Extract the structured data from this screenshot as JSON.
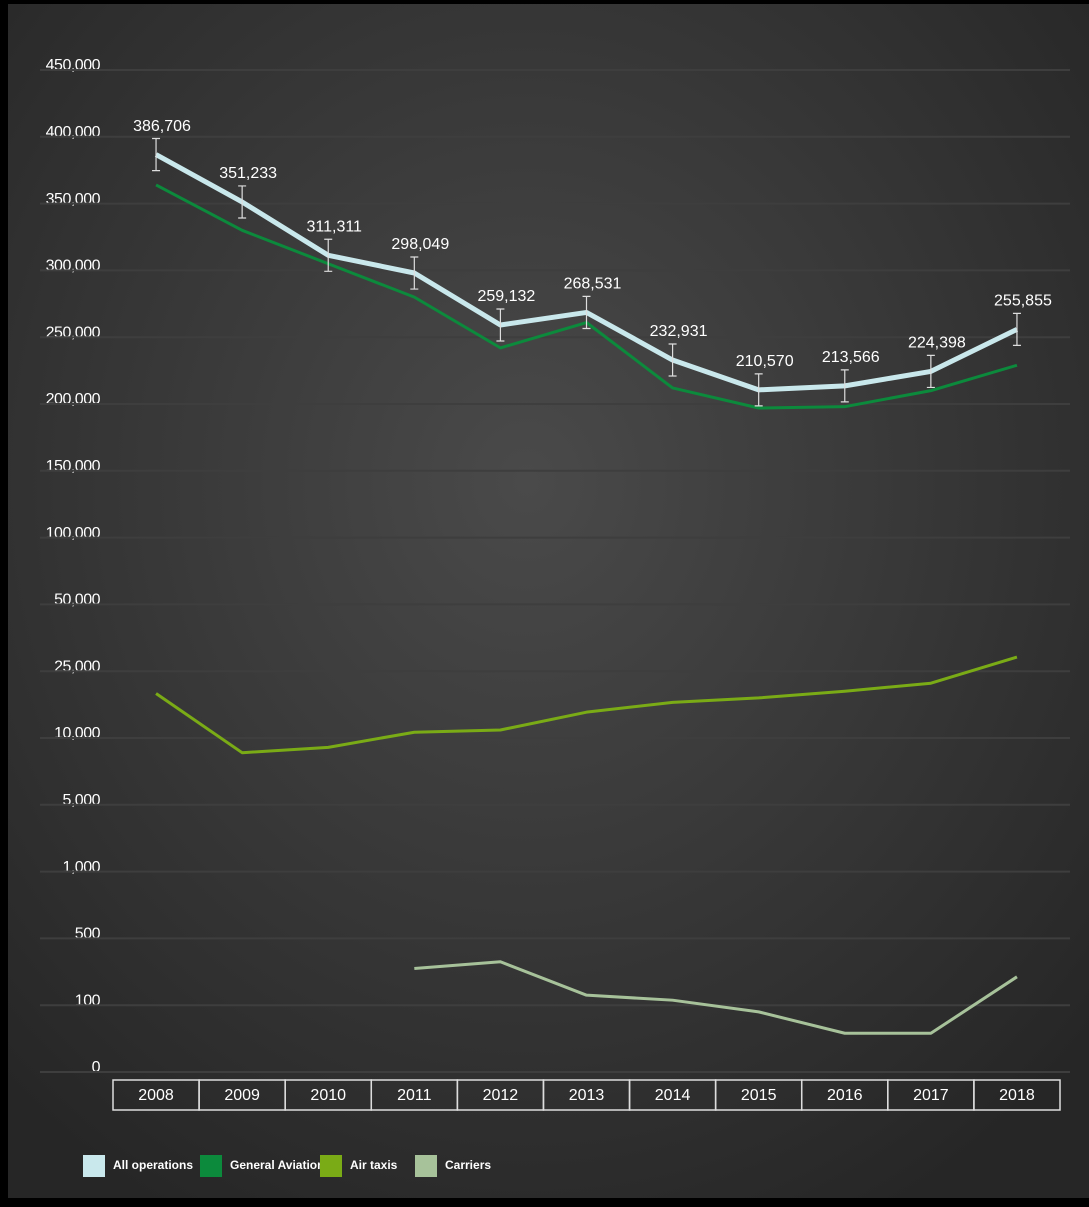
{
  "chart_data": {
    "type": "line",
    "categories": [
      "2008",
      "2009",
      "2010",
      "2011",
      "2012",
      "2013",
      "2014",
      "2015",
      "2016",
      "2017",
      "2018"
    ],
    "series": [
      {
        "name": "All operations",
        "color": "#c9e8ec",
        "width": 5,
        "values": [
          386706,
          351233,
          311311,
          298049,
          259132,
          268531,
          232931,
          210570,
          213566,
          224398,
          255855
        ],
        "value_labels": [
          "386,706",
          "351,233",
          "311,311",
          "298,049",
          "259,132",
          "268,531",
          "232,931",
          "210,570",
          "213,566",
          "224,398",
          "255,855"
        ],
        "errors": [
          12000,
          12000,
          12000,
          12000,
          12000,
          12000,
          12000,
          12000,
          12000,
          12000,
          12000
        ]
      },
      {
        "name": "General Aviation",
        "color": "#0c8a3c",
        "width": 3,
        "values": [
          364000,
          330000,
          305000,
          280000,
          242000,
          261000,
          212000,
          197000,
          198000,
          210000,
          229000
        ]
      },
      {
        "name": "Air taxis",
        "color": "#7aab16",
        "width": 3,
        "values": [
          20000,
          8900,
          9300,
          11300,
          11800,
          15800,
          18000,
          19000,
          20500,
          22300,
          30300
        ]
      },
      {
        "name": "Carriers",
        "color": "#a7c29a",
        "width": 3,
        "values": [
          null,
          null,
          null,
          320,
          360,
          160,
          130,
          90,
          58,
          58,
          270
        ]
      }
    ],
    "ylim": [
      0,
      450000
    ],
    "yticks": [
      0,
      100,
      500,
      {
        "value": 1000,
        "label": "1,000"
      },
      {
        "value": 5000,
        "label": "5,000"
      },
      {
        "value": 10000,
        "label": "10,000"
      },
      {
        "value": 25000,
        "label": "25,000"
      },
      {
        "value": 50000,
        "label": "50,000"
      },
      {
        "value": 100000,
        "label": "100,000"
      },
      {
        "value": 150000,
        "label": "150,000"
      },
      {
        "value": 200000,
        "label": "200,000"
      },
      {
        "value": 250000,
        "label": "250,000"
      },
      {
        "value": 300000,
        "label": "300,000"
      },
      {
        "value": 350000,
        "label": "350,000"
      },
      {
        "value": 400000,
        "label": "400,000"
      },
      {
        "value": 450000,
        "label": "450,000"
      }
    ],
    "y_scale": "equal-spaced-ticks",
    "grid": true
  }
}
